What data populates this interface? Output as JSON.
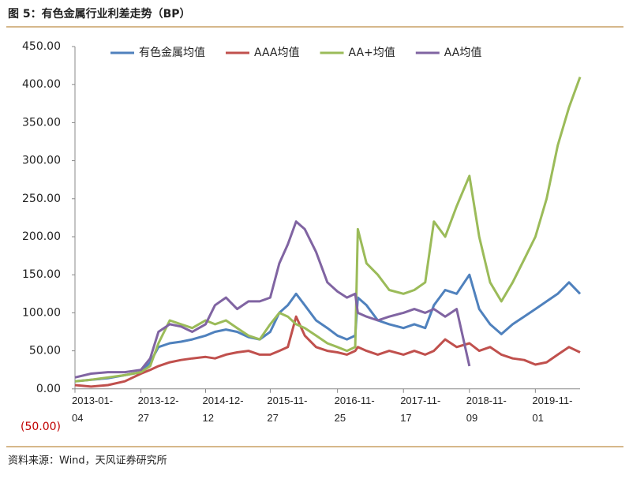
{
  "chart_data": {
    "type": "line",
    "title": "图 5：有色金属行业利差走势（BP）",
    "source": "资料来源：Wind，天风证券研究所",
    "x": [
      "2013-01-04",
      "2013-04-01",
      "2013-07-01",
      "2013-10-01",
      "2013-12-27",
      "2014-02-15",
      "2014-04-01",
      "2014-06-01",
      "2014-08-01",
      "2014-10-01",
      "2014-12-12",
      "2015-02-01",
      "2015-04-01",
      "2015-06-01",
      "2015-08-01",
      "2015-10-01",
      "2015-11-27",
      "2016-01-15",
      "2016-03-01",
      "2016-04-15",
      "2016-06-01",
      "2016-08-01",
      "2016-10-01",
      "2016-11-25",
      "2017-01-15",
      "2017-03-01",
      "2017-03-15",
      "2017-05-01",
      "2017-07-01",
      "2017-09-01",
      "2017-11-17",
      "2018-01-15",
      "2018-03-15",
      "2018-05-01",
      "2018-07-01",
      "2018-09-01",
      "2018-11-09",
      "2019-01-01",
      "2019-03-01",
      "2019-05-01",
      "2019-07-01",
      "2019-09-01",
      "2019-11-01",
      "2020-01-01",
      "2020-03-01",
      "2020-05-01",
      "2020-06-30"
    ],
    "series": [
      {
        "name": "有色金属均值",
        "color": "#4f81bd",
        "values": [
          10,
          12,
          14,
          18,
          22,
          35,
          55,
          60,
          62,
          65,
          70,
          75,
          78,
          75,
          68,
          65,
          75,
          100,
          110,
          125,
          110,
          90,
          80,
          70,
          65,
          70,
          120,
          110,
          90,
          85,
          80,
          85,
          80,
          110,
          130,
          125,
          150,
          105,
          85,
          72,
          85,
          95,
          105,
          115,
          125,
          140,
          125
        ]
      },
      {
        "name": "AAA均值",
        "color": "#c0504d",
        "values": [
          5,
          3,
          5,
          10,
          20,
          25,
          30,
          35,
          38,
          40,
          42,
          40,
          45,
          48,
          50,
          45,
          45,
          50,
          55,
          95,
          70,
          55,
          50,
          48,
          45,
          50,
          55,
          50,
          45,
          50,
          45,
          50,
          45,
          50,
          65,
          55,
          60,
          50,
          55,
          45,
          40,
          38,
          32,
          35,
          45,
          55,
          48
        ]
      },
      {
        "name": "AA+均值",
        "color": "#9bbb59",
        "values": [
          10,
          12,
          15,
          18,
          22,
          30,
          60,
          90,
          85,
          80,
          90,
          85,
          90,
          80,
          70,
          65,
          85,
          100,
          95,
          85,
          80,
          70,
          60,
          55,
          50,
          55,
          210,
          165,
          150,
          130,
          125,
          130,
          140,
          220,
          200,
          240,
          280,
          200,
          140,
          115,
          140,
          170,
          200,
          250,
          320,
          370,
          410
        ]
      },
      {
        "name": "AA均值",
        "color": "#8064a2",
        "values": [
          15,
          20,
          22,
          22,
          25,
          40,
          75,
          85,
          82,
          75,
          85,
          110,
          120,
          105,
          115,
          115,
          120,
          165,
          190,
          220,
          210,
          180,
          140,
          128,
          120,
          125,
          100,
          95,
          90,
          95,
          100,
          105,
          100,
          105,
          95,
          105,
          30,
          null,
          null,
          null,
          null,
          null,
          null,
          null,
          null,
          null,
          null
        ]
      }
    ],
    "xlim": [
      "2013-01-04",
      "2020-06-30"
    ],
    "xticks": [
      "2013-01-04",
      "2013-12-27",
      "2014-12-12",
      "2015-11-27",
      "2016-11-25",
      "2017-11-17",
      "2018-11-09",
      "2019-11-01"
    ],
    "ylim": [
      -50,
      450
    ],
    "yticks": [
      {
        "value": -50,
        "label": "(50.00)"
      },
      {
        "value": 0,
        "label": "0.00"
      },
      {
        "value": 50,
        "label": "50.00"
      },
      {
        "value": 100,
        "label": "100.00"
      },
      {
        "value": 150,
        "label": "150.00"
      },
      {
        "value": 200,
        "label": "200.00"
      },
      {
        "value": 250,
        "label": "250.00"
      },
      {
        "value": 300,
        "label": "300.00"
      },
      {
        "value": 350,
        "label": "350.00"
      },
      {
        "value": 400,
        "label": "400.00"
      },
      {
        "value": 450,
        "label": "450.00"
      }
    ],
    "negative_tick_color": "#c00000",
    "grid": false,
    "legend": "top"
  }
}
